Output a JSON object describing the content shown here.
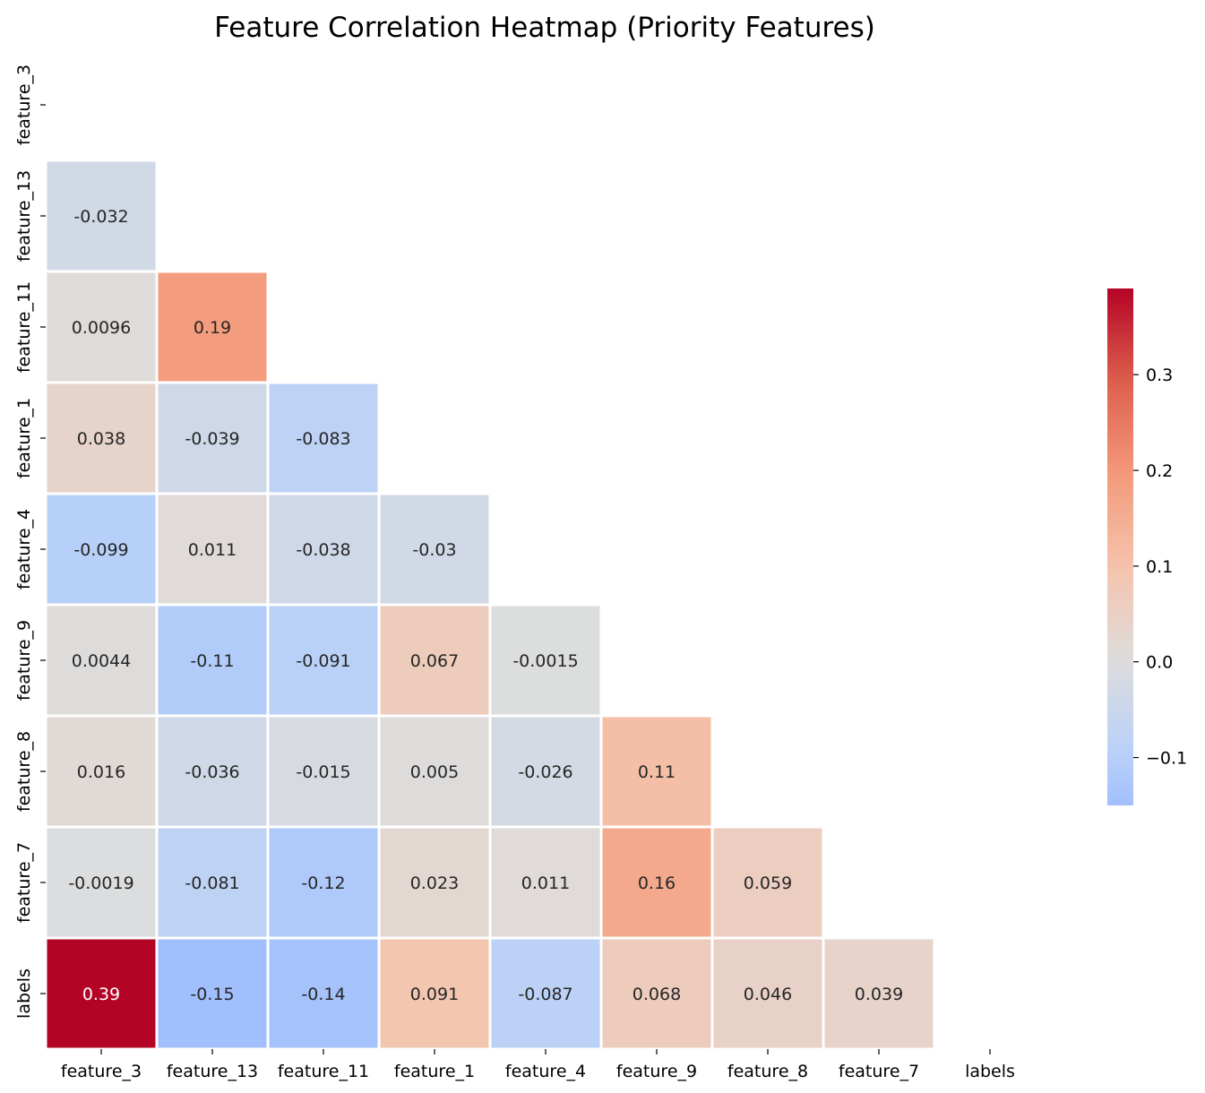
{
  "chart_data": {
    "type": "heatmap",
    "title": "Feature Correlation Heatmap (Priority Features)",
    "x_labels": [
      "feature_3",
      "feature_13",
      "feature_11",
      "feature_1",
      "feature_4",
      "feature_9",
      "feature_8",
      "feature_7",
      "labels"
    ],
    "y_labels": [
      "feature_3",
      "feature_13",
      "feature_11",
      "feature_1",
      "feature_4",
      "feature_9",
      "feature_8",
      "feature_7",
      "labels"
    ],
    "mask": "upper-triangle-including-diagonal",
    "cells": [
      {
        "row": 1,
        "col": 0,
        "value": -0.032,
        "label": "-0.032"
      },
      {
        "row": 2,
        "col": 0,
        "value": 0.0096,
        "label": "0.0096"
      },
      {
        "row": 2,
        "col": 1,
        "value": 0.19,
        "label": "0.19"
      },
      {
        "row": 3,
        "col": 0,
        "value": 0.038,
        "label": "0.038"
      },
      {
        "row": 3,
        "col": 1,
        "value": -0.039,
        "label": "-0.039"
      },
      {
        "row": 3,
        "col": 2,
        "value": -0.083,
        "label": "-0.083"
      },
      {
        "row": 4,
        "col": 0,
        "value": -0.099,
        "label": "-0.099"
      },
      {
        "row": 4,
        "col": 1,
        "value": 0.011,
        "label": "0.011"
      },
      {
        "row": 4,
        "col": 2,
        "value": -0.038,
        "label": "-0.038"
      },
      {
        "row": 4,
        "col": 3,
        "value": -0.03,
        "label": "-0.03"
      },
      {
        "row": 5,
        "col": 0,
        "value": 0.0044,
        "label": "0.0044"
      },
      {
        "row": 5,
        "col": 1,
        "value": -0.11,
        "label": "-0.11"
      },
      {
        "row": 5,
        "col": 2,
        "value": -0.091,
        "label": "-0.091"
      },
      {
        "row": 5,
        "col": 3,
        "value": 0.067,
        "label": "0.067"
      },
      {
        "row": 5,
        "col": 4,
        "value": -0.0015,
        "label": "-0.0015"
      },
      {
        "row": 6,
        "col": 0,
        "value": 0.016,
        "label": "0.016"
      },
      {
        "row": 6,
        "col": 1,
        "value": -0.036,
        "label": "-0.036"
      },
      {
        "row": 6,
        "col": 2,
        "value": -0.015,
        "label": "-0.015"
      },
      {
        "row": 6,
        "col": 3,
        "value": 0.005,
        "label": "0.005"
      },
      {
        "row": 6,
        "col": 4,
        "value": -0.026,
        "label": "-0.026"
      },
      {
        "row": 6,
        "col": 5,
        "value": 0.11,
        "label": "0.11"
      },
      {
        "row": 7,
        "col": 0,
        "value": -0.0019,
        "label": "-0.0019"
      },
      {
        "row": 7,
        "col": 1,
        "value": -0.081,
        "label": "-0.081"
      },
      {
        "row": 7,
        "col": 2,
        "value": -0.12,
        "label": "-0.12"
      },
      {
        "row": 7,
        "col": 3,
        "value": 0.023,
        "label": "0.023"
      },
      {
        "row": 7,
        "col": 4,
        "value": 0.011,
        "label": "0.011"
      },
      {
        "row": 7,
        "col": 5,
        "value": 0.16,
        "label": "0.16"
      },
      {
        "row": 7,
        "col": 6,
        "value": 0.059,
        "label": "0.059"
      },
      {
        "row": 8,
        "col": 0,
        "value": 0.39,
        "label": "0.39"
      },
      {
        "row": 8,
        "col": 1,
        "value": -0.15,
        "label": "-0.15"
      },
      {
        "row": 8,
        "col": 2,
        "value": -0.14,
        "label": "-0.14"
      },
      {
        "row": 8,
        "col": 3,
        "value": 0.091,
        "label": "0.091"
      },
      {
        "row": 8,
        "col": 4,
        "value": -0.087,
        "label": "-0.087"
      },
      {
        "row": 8,
        "col": 5,
        "value": 0.068,
        "label": "0.068"
      },
      {
        "row": 8,
        "col": 6,
        "value": 0.046,
        "label": "0.046"
      },
      {
        "row": 8,
        "col": 7,
        "value": 0.039,
        "label": "0.039"
      }
    ],
    "colormap": "coolwarm",
    "center": 0,
    "vmin": -0.15,
    "vmax": 0.39,
    "colorbar": {
      "ticks": [
        -0.1,
        0.0,
        0.1,
        0.2,
        0.3
      ],
      "tick_labels": [
        "−0.1",
        "0.0",
        "0.1",
        "0.2",
        "0.3"
      ],
      "placement": "right"
    },
    "grid": false
  }
}
